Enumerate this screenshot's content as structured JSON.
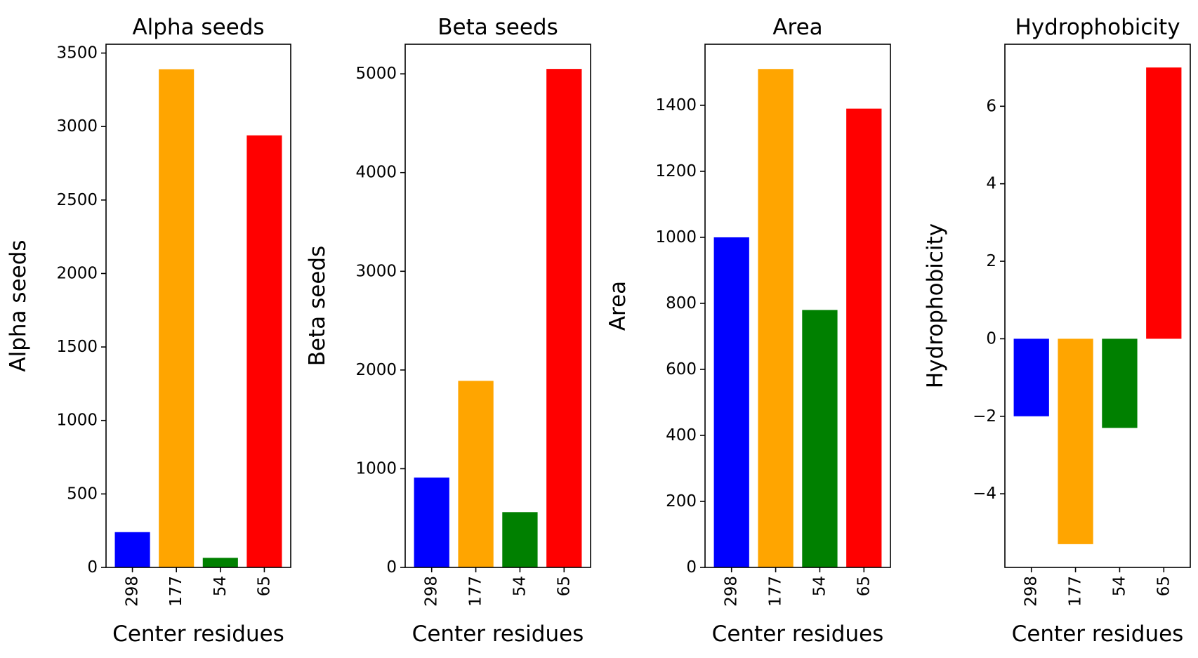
{
  "colors": {
    "series": [
      "#0000ff",
      "#ffa500",
      "#008000",
      "#ff0000"
    ],
    "axis": "#000000",
    "background": "#ffffff"
  },
  "chart_data": [
    {
      "type": "bar",
      "title": "Alpha seeds",
      "xlabel": "Center residues",
      "ylabel": "Alpha seeds",
      "categories": [
        "298",
        "177",
        "54",
        "65"
      ],
      "values": [
        240,
        3390,
        65,
        2940
      ],
      "ylim": [
        0,
        3560
      ],
      "yticks": [
        0,
        500,
        1000,
        1500,
        2000,
        2500,
        3000,
        3500
      ],
      "ytick_labels": [
        "0",
        "500",
        "1000",
        "1500",
        "2000",
        "2500",
        "3000",
        "3500"
      ],
      "grid": false,
      "legend": "none"
    },
    {
      "type": "bar",
      "title": "Beta seeds",
      "xlabel": "Center residues",
      "ylabel": "Beta seeds",
      "categories": [
        "298",
        "177",
        "54",
        "65"
      ],
      "values": [
        910,
        1890,
        560,
        5050
      ],
      "ylim": [
        0,
        5300
      ],
      "yticks": [
        0,
        1000,
        2000,
        3000,
        4000,
        5000
      ],
      "ytick_labels": [
        "0",
        "1000",
        "2000",
        "3000",
        "4000",
        "5000"
      ],
      "grid": false,
      "legend": "none"
    },
    {
      "type": "bar",
      "title": "Area",
      "xlabel": "Center residues",
      "ylabel": "Area",
      "categories": [
        "298",
        "177",
        "54",
        "65"
      ],
      "values": [
        1000,
        1510,
        780,
        1390
      ],
      "ylim": [
        0,
        1585
      ],
      "yticks": [
        0,
        200,
        400,
        600,
        800,
        1000,
        1200,
        1400
      ],
      "ytick_labels": [
        "0",
        "200",
        "400",
        "600",
        "800",
        "1000",
        "1200",
        "1400"
      ],
      "grid": false,
      "legend": "none"
    },
    {
      "type": "bar",
      "title": "Hydrophobicity",
      "xlabel": "Center residues",
      "ylabel": "Hydrophobicity",
      "categories": [
        "298",
        "177",
        "54",
        "65"
      ],
      "values": [
        -2.0,
        -5.3,
        -2.3,
        7.0
      ],
      "ylim": [
        -5.9,
        7.6
      ],
      "yticks": [
        -4,
        -2,
        0,
        2,
        4,
        6
      ],
      "ytick_labels": [
        "−4",
        "−2",
        "0",
        "2",
        "4",
        "6"
      ],
      "grid": false,
      "legend": "none"
    }
  ]
}
